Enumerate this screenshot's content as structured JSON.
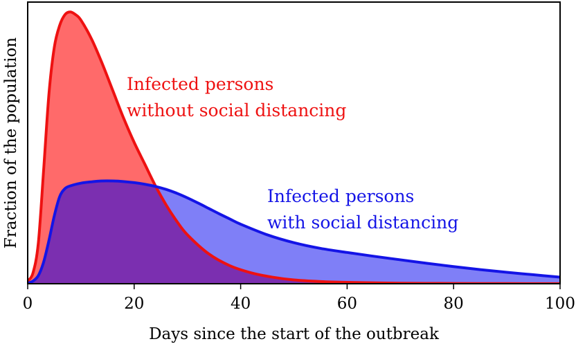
{
  "chart_data": {
    "type": "area",
    "title": "",
    "xlabel": "Days since the start of the outbreak",
    "ylabel": "Fraction of the population",
    "xlim": [
      0,
      100
    ],
    "ylim": [
      0,
      1
    ],
    "xticks": [
      "0",
      "20",
      "40",
      "60",
      "80",
      "100"
    ],
    "yticks_shown": false,
    "grid": false,
    "legend": "none",
    "series": [
      {
        "name": "Infected persons without social distancing",
        "color": "#ee1111",
        "fill": "#ff6a6a",
        "x": [
          0,
          1,
          2,
          3,
          4,
          5,
          6,
          7,
          8,
          9,
          10,
          12,
          14,
          16,
          18,
          20,
          22,
          24,
          26,
          28,
          30,
          34,
          38,
          42,
          46,
          50,
          55,
          60,
          70,
          80,
          90,
          100
        ],
        "y": [
          0.01,
          0.04,
          0.15,
          0.42,
          0.7,
          0.87,
          0.95,
          0.99,
          1.0,
          0.99,
          0.97,
          0.9,
          0.81,
          0.71,
          0.61,
          0.52,
          0.44,
          0.36,
          0.29,
          0.23,
          0.18,
          0.11,
          0.066,
          0.04,
          0.024,
          0.014,
          0.008,
          0.005,
          0.002,
          0.001,
          0.0005,
          0.0002
        ]
      },
      {
        "name": "Infected persons with social distancing",
        "color": "#1414e6",
        "fill": "#7f7ff7",
        "x": [
          0,
          1,
          2,
          3,
          4,
          5,
          6,
          7,
          8,
          10,
          12,
          14,
          16,
          18,
          20,
          22,
          24,
          26,
          28,
          30,
          32,
          34,
          36,
          38,
          40,
          45,
          50,
          55,
          60,
          65,
          70,
          75,
          80,
          85,
          90,
          95,
          100
        ],
        "y": [
          0.002,
          0.01,
          0.03,
          0.08,
          0.16,
          0.25,
          0.32,
          0.35,
          0.36,
          0.37,
          0.375,
          0.378,
          0.378,
          0.376,
          0.372,
          0.366,
          0.358,
          0.347,
          0.333,
          0.316,
          0.297,
          0.277,
          0.257,
          0.238,
          0.219,
          0.18,
          0.151,
          0.13,
          0.115,
          0.101,
          0.088,
          0.075,
          0.063,
          0.052,
          0.042,
          0.033,
          0.024
        ]
      }
    ],
    "overlap_color": "#7b2fb0",
    "annotations": [
      {
        "lines": [
          "Infected persons",
          "without social distancing"
        ],
        "color": "#ee1111"
      },
      {
        "lines": [
          "Infected persons",
          "with social distancing"
        ],
        "color": "#1414e6"
      }
    ]
  }
}
